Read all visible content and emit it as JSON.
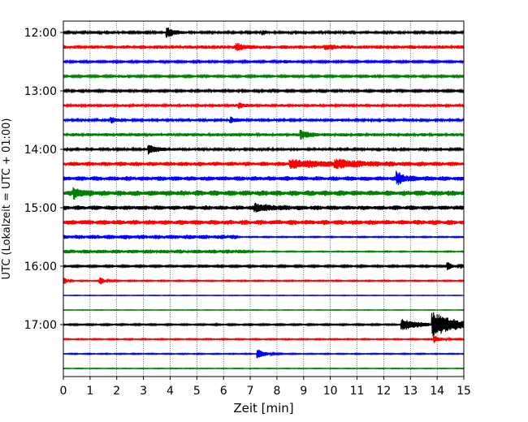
{
  "chart_data": {
    "type": "line",
    "subtype": "helicorder",
    "title": "",
    "xlabel": "Zeit  [min]",
    "ylabel": "UTC (Lokalzeit = UTC + 01:00)",
    "xlim": [
      0,
      15
    ],
    "x_ticks": [
      0,
      1,
      2,
      3,
      4,
      5,
      6,
      7,
      8,
      9,
      10,
      11,
      12,
      13,
      14,
      15
    ],
    "x_tick_labels": [
      "0",
      "1",
      "2",
      "3",
      "4",
      "5",
      "6",
      "7",
      "8",
      "9",
      "10",
      "11",
      "12",
      "13",
      "14",
      "15"
    ],
    "grid": "vertical dotted at each minute",
    "y_ticks": [
      {
        "row": 0,
        "label": "12:00"
      },
      {
        "row": 4,
        "label": "13:00"
      },
      {
        "row": 8,
        "label": "14:00"
      },
      {
        "row": 12,
        "label": "15:00"
      },
      {
        "row": 16,
        "label": "16:00"
      },
      {
        "row": 20,
        "label": "17:00"
      }
    ],
    "row_colors": [
      "#000000",
      "#ff0000",
      "#0000ff",
      "#008000"
    ],
    "traces": [
      {
        "start": "12:00",
        "noise": 0.15,
        "events": [
          {
            "t": 3.9,
            "amp": 0.8,
            "dur": 0.3
          },
          {
            "t": 7.5,
            "amp": 0.35,
            "dur": 0.15
          }
        ]
      },
      {
        "start": "12:15",
        "noise": 0.25,
        "events": [
          {
            "t": 6.5,
            "amp": 0.45,
            "dur": 0.3
          },
          {
            "t": 9.8,
            "amp": 0.3,
            "dur": 0.4
          }
        ]
      },
      {
        "start": "12:30",
        "noise": 0.13,
        "events": [
          {
            "t": 8.3,
            "amp": 0.2,
            "dur": 0.3
          }
        ]
      },
      {
        "start": "12:45",
        "noise": 0.13,
        "events": [
          {
            "t": 2.1,
            "amp": 0.2,
            "dur": 0.2
          }
        ]
      },
      {
        "start": "13:00",
        "noise": 0.14,
        "events": []
      },
      {
        "start": "13:15",
        "noise": 0.2,
        "events": [
          {
            "t": 6.6,
            "amp": 0.4,
            "dur": 0.2
          }
        ]
      },
      {
        "start": "13:30",
        "noise": 0.17,
        "events": [
          {
            "t": 1.8,
            "amp": 0.55,
            "dur": 0.15
          },
          {
            "t": 6.3,
            "amp": 0.45,
            "dur": 0.2
          }
        ]
      },
      {
        "start": "13:45",
        "noise": 0.23,
        "events": [
          {
            "t": 8.9,
            "amp": 0.7,
            "dur": 0.3
          }
        ]
      },
      {
        "start": "14:00",
        "noise": 0.17,
        "events": [
          {
            "t": 3.2,
            "amp": 0.8,
            "dur": 0.3
          }
        ]
      },
      {
        "start": "14:15",
        "noise": 0.3,
        "events": [
          {
            "t": 8.5,
            "amp": 0.55,
            "dur": 1.4
          },
          {
            "t": 10.2,
            "amp": 0.5,
            "dur": 0.8
          }
        ]
      },
      {
        "start": "14:30",
        "noise": 0.32,
        "events": [
          {
            "t": 12.5,
            "amp": 0.95,
            "dur": 0.3
          }
        ]
      },
      {
        "start": "14:45",
        "noise": 0.38,
        "events": [
          {
            "t": 0.4,
            "amp": 0.75,
            "dur": 0.3
          }
        ]
      },
      {
        "start": "15:00",
        "noise": 0.32,
        "events": [
          {
            "t": 7.2,
            "amp": 0.5,
            "dur": 0.6
          }
        ]
      },
      {
        "start": "15:15",
        "noise": 0.34,
        "events": []
      },
      {
        "start": "15:30",
        "noise": 0.3,
        "active_until": 6.5,
        "events": []
      },
      {
        "start": "15:45",
        "noise": 0.28,
        "active_until": 7.1,
        "events": []
      },
      {
        "start": "16:00",
        "noise": 0.12,
        "events": [
          {
            "t": 14.4,
            "amp": 0.8,
            "dur": 0.12
          },
          {
            "t": 14.9,
            "amp": 0.4,
            "dur": 0.1
          }
        ]
      },
      {
        "start": "16:15",
        "noise": 0.08,
        "events": [
          {
            "t": 0.05,
            "amp": 0.55,
            "dur": 0.1
          },
          {
            "t": 1.4,
            "amp": 0.6,
            "dur": 0.15
          }
        ]
      },
      {
        "start": "16:30",
        "noise": 0.04,
        "events": []
      },
      {
        "start": "16:45",
        "noise": 0.04,
        "events": []
      },
      {
        "start": "17:00",
        "noise": 0.1,
        "events": [
          {
            "t": 12.7,
            "amp": 1.0,
            "dur": 0.6
          },
          {
            "t": 13.85,
            "amp": 2.0,
            "dur": 0.9
          }
        ]
      },
      {
        "start": "17:15",
        "noise": 0.08,
        "events": [
          {
            "t": 13.9,
            "amp": 0.6,
            "dur": 0.25
          }
        ]
      },
      {
        "start": "17:30",
        "noise": 0.07,
        "events": [
          {
            "t": 7.3,
            "amp": 0.8,
            "dur": 0.25
          }
        ]
      },
      {
        "start": "17:45",
        "noise": 0.05,
        "events": []
      }
    ]
  }
}
